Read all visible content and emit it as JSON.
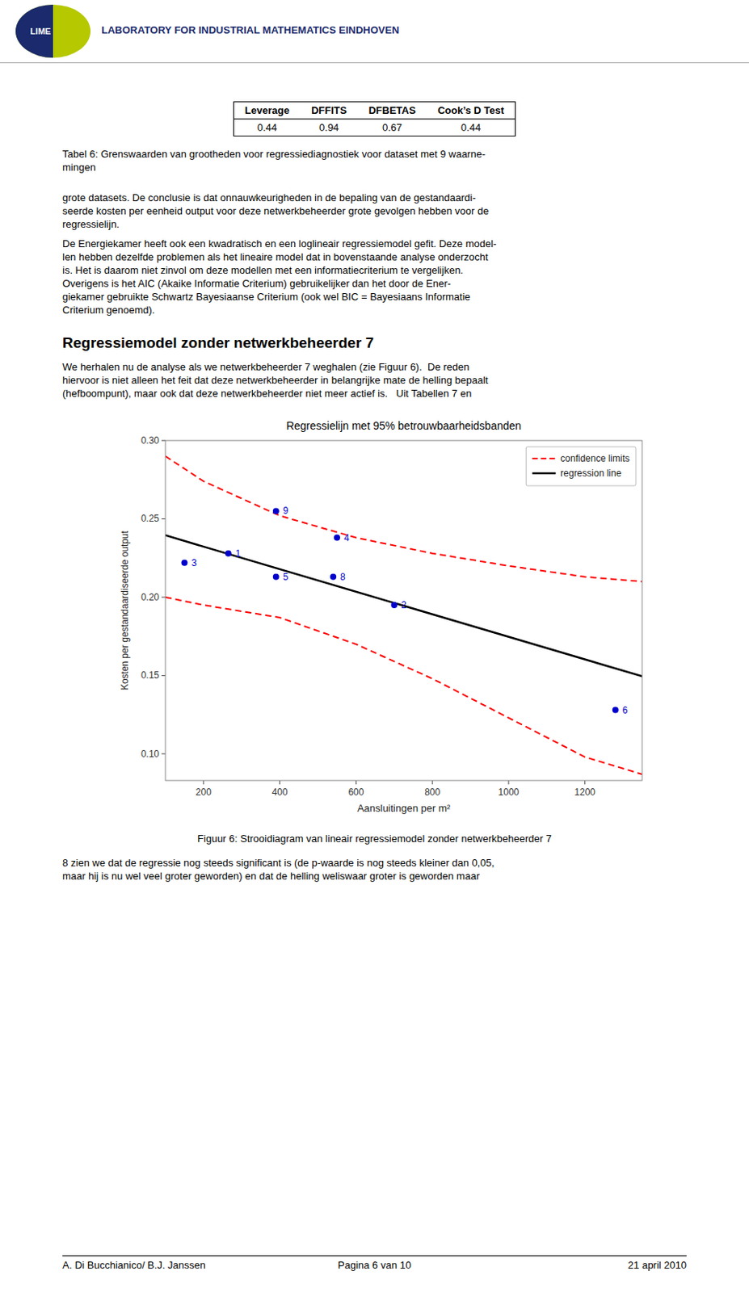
{
  "chart_data": {
    "type": "scatter",
    "title": "Regressielijn met 95% betrouwbaarheidsbanden",
    "x_label": "Aansluitingen per m²",
    "y_label": "Kosten per gestandaardiseerde output",
    "xlim": [
      100,
      1350
    ],
    "ylim": [
      0.083,
      0.3
    ],
    "xticks": [
      200,
      400,
      600,
      800,
      1000,
      1200
    ],
    "yticks": [
      {
        "value": 0.1,
        "label": "0.10"
      },
      0.15,
      {
        "value": 0.2,
        "label": "0.20"
      },
      0.25,
      {
        "value": 0.3,
        "label": "0.30"
      }
    ],
    "grid": false,
    "legend": "upper right",
    "series": [
      {
        "type": "scatter",
        "marker": "circle",
        "color": "#0000cc",
        "x": [
          150,
          265,
          390,
          390,
          550,
          700,
          1280,
          540
        ],
        "values": [
          0.222,
          0.228,
          0.213,
          0.255,
          0.238,
          0.195,
          0.128,
          0.213
        ],
        "point_labels": [
          "3",
          "1",
          "5",
          "9",
          "4",
          "2",
          "6",
          "8"
        ]
      },
      {
        "name": "confidence limits",
        "type": "line",
        "line_style": "dashed",
        "color": "#ff0000",
        "x": [
          100,
          200,
          400,
          600,
          800,
          1000,
          1200,
          1350
        ],
        "values": [
          0.29,
          0.274,
          0.252,
          0.238,
          0.228,
          0.22,
          0.213,
          0.21
        ]
      },
      {
        "type": "line",
        "line_style": "dashed",
        "color": "#ff0000",
        "x": [
          100,
          200,
          400,
          600,
          800,
          1000,
          1200,
          1350
        ],
        "values": [
          0.2,
          0.195,
          0.187,
          0.17,
          0.148,
          0.123,
          0.098,
          0.087
        ]
      },
      {
        "name": "regression line",
        "type": "line",
        "line_style": "solid",
        "color": "#000000",
        "x": [
          100,
          1350
        ],
        "values": [
          0.2395,
          0.1495
        ]
      }
    ]
  },
  "page": {
    "logo_text": "LIME",
    "header_text": "LABORATORY FOR INDUSTRIAL MATHEMATICS EINDHOVEN",
    "table_headers": [
      "Leverage",
      "DFFITS",
      "DFBETAS",
      "Cook’s D Test"
    ],
    "table_values": [
      "0.44",
      "0.94",
      "0.67",
      "0.44"
    ],
    "table_caption": [
      "Tabel 6: Grenswaarden van grootheden voor regressiediagnostiek voor dataset met 9 waarne-",
      "mingen"
    ],
    "para1": [
      "grote datasets. De conclusie is dat onnauwkeurigheden in de bepaling van de gestandaardi-",
      "seerde kosten per eenheid output voor deze netwerkbeheerder grote gevolgen hebben voor de",
      "regressielijn."
    ],
    "para2": [
      "De Energiekamer heeft ook een kwadratisch en een loglineair regressiemodel gefit. Deze model-",
      "len hebben dezelfde problemen als het lineaire model dat in bovenstaande analyse onderzocht",
      "is. Het is daarom niet zinvol om deze modellen met een informatiecriterium te vergelijken.",
      "Overigens is het AIC (Akaike Informatie Criterium) gebruikelijker dan het door de Ener-",
      "giekamer gebruikte Schwartz Bayesiaanse Criterium (ook wel BIC = Bayesiaans Informatie",
      "Criterium genoemd)."
    ],
    "section_title": "Regressiemodel zonder netwerkbeheerder 7",
    "para3": [
      "We herhalen nu de analyse als we netwerkbeheerder 7 weghalen (zie Figuur 6).  De reden",
      "hiervoor is niet alleen het feit dat deze netwerkbeheerder in belangrijke mate de helling bepaalt",
      "(hefboompunt), maar ook dat deze netwerkbeheerder niet meer actief is.   Uit Tabellen 7 en"
    ],
    "fig_caption": "Figuur 6: Strooidiagram van lineair regressiemodel zonder netwerkbeheerder 7",
    "para4": [
      "8 zien we dat de regressie nog steeds significant is (de p-waarde is nog steeds kleiner dan 0,05,",
      "maar hij is nu wel veel groter geworden) en dat de helling weliswaar groter is geworden maar"
    ],
    "footer_left": "A. Di Bucchianico/ B.J. Janssen",
    "footer_center": "Pagina 6 van 10",
    "footer_right": "21 april 2010"
  }
}
